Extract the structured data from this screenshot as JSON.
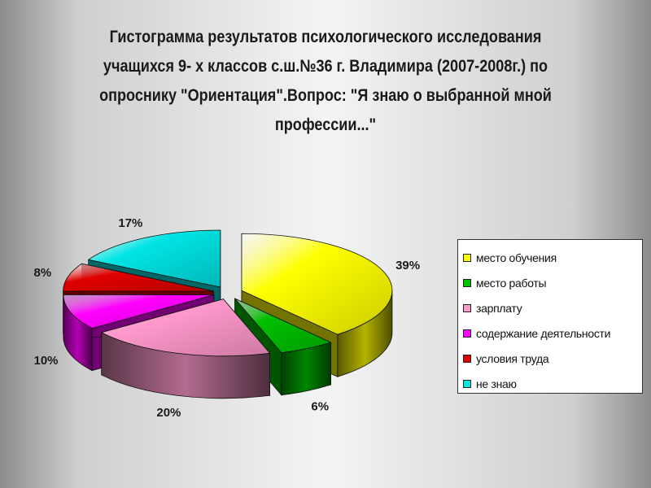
{
  "chart_data": {
    "type": "pie",
    "title_lines": [
      "Гистограмма результатов психологического исследования",
      "учащихся 9- х классов с.ш.№36 г. Владимира (2007-2008г.) по",
      "опроснику \"Ориентация\".Вопрос: \"Я знаю о выбранной мной",
      "профессии...\""
    ],
    "categories": [
      "место обучения",
      "место работы",
      "зарплату",
      "содержание деятельности",
      "условия труда",
      "не знаю"
    ],
    "values": [
      39,
      6,
      20,
      10,
      8,
      17
    ],
    "data_labels": [
      "39%",
      "6%",
      "20%",
      "10%",
      "8%",
      "17%"
    ],
    "colors": [
      "#ffff00",
      "#00c000",
      "#ff99cc",
      "#ff00ff",
      "#e00000",
      "#00e5e5"
    ],
    "legend_position": "right",
    "style": "3d-exploded"
  }
}
